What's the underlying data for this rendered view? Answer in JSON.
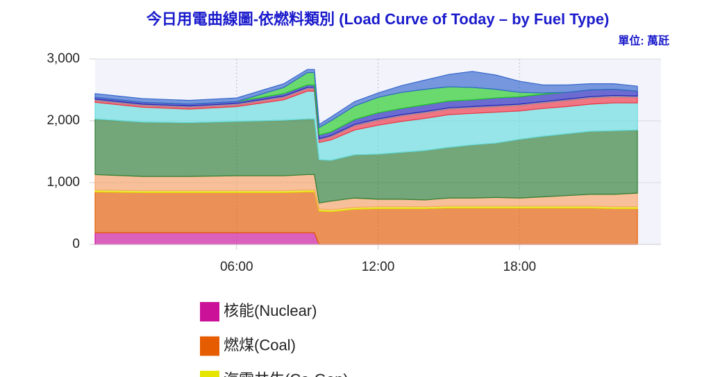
{
  "chart_data": {
    "type": "stacked_area",
    "title": "今日用電曲線圖-依燃料類別 (Load Curve of Today – by Fuel Type)",
    "subtitle": "單位: 萬瓩",
    "x": [
      0,
      2,
      4,
      6,
      8,
      9,
      9.3,
      9.5,
      10,
      11,
      12,
      13,
      14,
      15,
      16,
      17,
      18,
      19,
      20,
      21,
      22,
      23
    ],
    "xlim": [
      0,
      24
    ],
    "xticks": [
      {
        "value": 6,
        "label": "06:00"
      },
      {
        "value": 12,
        "label": "12:00"
      },
      {
        "value": 18,
        "label": "18:00"
      }
    ],
    "ylim": [
      0,
      3000
    ],
    "yticks": [
      0,
      {
        "value": 1000,
        "label": "1,000"
      },
      {
        "value": 2000,
        "label": "2,000"
      },
      {
        "value": 3000,
        "label": "3,000"
      }
    ],
    "grid": true,
    "series": [
      {
        "name": "核能(Nuclear)",
        "color": "#cc1199",
        "values": [
          190,
          190,
          190,
          190,
          190,
          190,
          190,
          0,
          0,
          0,
          0,
          0,
          0,
          0,
          0,
          0,
          0,
          0,
          0,
          0,
          0,
          0
        ]
      },
      {
        "name": "燃煤(Coal)",
        "color": "#e65c00",
        "values": [
          660,
          650,
          650,
          650,
          650,
          660,
          660,
          540,
          530,
          570,
          580,
          580,
          580,
          590,
          590,
          590,
          590,
          590,
          590,
          590,
          580,
          580
        ]
      },
      {
        "name": "汽電共生(Co-Gen)",
        "color": "#e5e500",
        "values": [
          30,
          30,
          30,
          30,
          30,
          30,
          30,
          30,
          30,
          30,
          30,
          30,
          30,
          30,
          30,
          30,
          30,
          30,
          30,
          30,
          30,
          30
        ]
      },
      {
        "color": "#f9a466",
        "values": [
          250,
          230,
          230,
          240,
          240,
          250,
          250,
          100,
          140,
          150,
          120,
          120,
          110,
          130,
          130,
          140,
          130,
          150,
          170,
          190,
          200,
          220
        ]
      },
      {
        "color": "#2e7d32",
        "values": [
          900,
          880,
          870,
          880,
          900,
          900,
          900,
          700,
          660,
          700,
          730,
          760,
          800,
          820,
          860,
          880,
          950,
          980,
          1000,
          1020,
          1030,
          1020
        ]
      },
      {
        "color": "#66dddd",
        "values": [
          270,
          240,
          220,
          240,
          330,
          450,
          450,
          280,
          330,
          400,
          470,
          500,
          520,
          530,
          510,
          500,
          460,
          450,
          440,
          440,
          450,
          440
        ]
      },
      {
        "color": "#ee3344",
        "values": [
          30,
          30,
          30,
          30,
          40,
          40,
          40,
          40,
          50,
          70,
          80,
          90,
          90,
          90,
          90,
          90,
          90,
          90,
          100,
          100,
          100,
          90
        ]
      },
      {
        "color": "#998899",
        "values": [
          20,
          20,
          20,
          20,
          20,
          20,
          20,
          20,
          20,
          20,
          20,
          20,
          20,
          20,
          20,
          20,
          20,
          20,
          20,
          20,
          20,
          20
        ]
      },
      {
        "color": "#2222bb",
        "values": [
          30,
          30,
          30,
          30,
          40,
          40,
          40,
          60,
          60,
          80,
          100,
          100,
          110,
          110,
          110,
          120,
          120,
          120,
          110,
          110,
          100,
          80
        ]
      },
      {
        "color": "#22cc22",
        "values": [
          0,
          0,
          0,
          0,
          100,
          200,
          200,
          120,
          180,
          220,
          250,
          260,
          250,
          230,
          200,
          140,
          70,
          20,
          0,
          0,
          0,
          0
        ]
      },
      {
        "color": "#3366cc",
        "values": [
          60,
          60,
          60,
          60,
          60,
          50,
          50,
          50,
          60,
          70,
          70,
          110,
          150,
          200,
          260,
          230,
          180,
          130,
          120,
          100,
          90,
          80
        ]
      }
    ]
  }
}
